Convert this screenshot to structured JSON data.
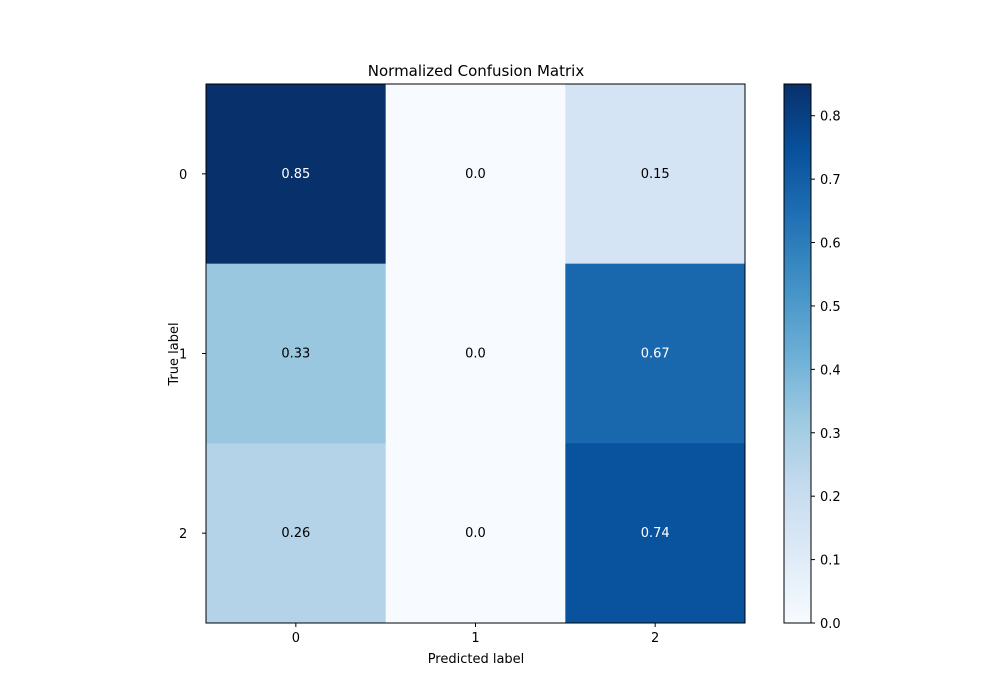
{
  "chart_data": {
    "type": "heatmap",
    "title": "Normalized Confusion Matrix",
    "xlabel": "Predicted label",
    "ylabel": "True label",
    "x_categories": [
      "0",
      "1",
      "2"
    ],
    "y_categories": [
      "0",
      "1",
      "2"
    ],
    "values": [
      [
        0.85,
        0.0,
        0.15
      ],
      [
        0.33,
        0.0,
        0.67
      ],
      [
        0.26,
        0.0,
        0.74
      ]
    ],
    "cell_labels": [
      [
        "0.85",
        "0.0",
        "0.15"
      ],
      [
        "0.33",
        "0.0",
        "0.67"
      ],
      [
        "0.26",
        "0.0",
        "0.74"
      ]
    ],
    "colormap": "Blues",
    "vmin": 0.0,
    "vmax": 0.85,
    "colorbar_ticks": [
      "0.0",
      "0.1",
      "0.2",
      "0.3",
      "0.4",
      "0.5",
      "0.6",
      "0.7",
      "0.8"
    ],
    "grid": false,
    "text_color_light": "#ffffff",
    "text_color_dark": "#000000"
  }
}
